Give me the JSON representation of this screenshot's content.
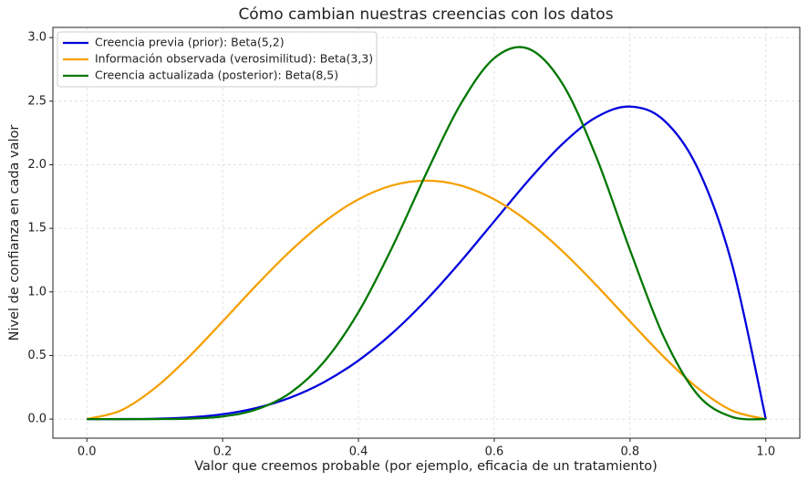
{
  "chart_data": {
    "type": "line",
    "title": "Cómo cambian nuestras creencias con los datos",
    "x_label": "Valor que creemos probable (por ejemplo, eficacia de un tratamiento)",
    "y_label": "Nivel de confianza en cada valor",
    "x": [
      0,
      0.05,
      0.1,
      0.15,
      0.2,
      0.25,
      0.3,
      0.35,
      0.4,
      0.45,
      0.5,
      0.55,
      0.6,
      0.65,
      0.7,
      0.75,
      0.8,
      0.85,
      0.9,
      0.95,
      1
    ],
    "series": [
      {
        "name": "Creencia previa (prior): Beta(5,2)",
        "color": "#0000dd",
        "values": [
          0,
          0.0002,
          0.0027,
          0.0129,
          0.0384,
          0.0879,
          0.1701,
          0.2926,
          0.4608,
          0.6766,
          0.9375,
          1.2353,
          1.5552,
          1.8743,
          2.1609,
          2.373,
          2.4576,
          2.349,
          1.9683,
          1.2218,
          0
        ]
      },
      {
        "name": "Información observada (verosimilitud): Beta(3,3)",
        "color": "#f5a000",
        "values": [
          0,
          0.0677,
          0.243,
          0.4877,
          0.768,
          1.0547,
          1.323,
          1.5527,
          1.728,
          1.8377,
          1.875,
          1.8377,
          1.728,
          1.5527,
          1.323,
          1.0547,
          0.768,
          0.4877,
          0.243,
          0.0677,
          0
        ]
      },
      {
        "name": "Creencia actualizada (posterior): Beta(8,5)",
        "color": "#007700",
        "values": [
          0,
          0,
          0.0003,
          0.0035,
          0.0208,
          0.0765,
          0.2079,
          0.4548,
          0.8409,
          1.354,
          1.9336,
          2.4722,
          2.8379,
          2.9131,
          2.6416,
          2.0648,
          1.3288,
          0.6427,
          0.1894,
          0.0173,
          0
        ]
      }
    ],
    "xlim": [
      -0.05,
      1.05
    ],
    "ylim": [
      -0.15,
      3.08
    ],
    "xticks": [
      {
        "value": 0,
        "label": "0.0"
      },
      {
        "value": 0.2,
        "label": "0.2"
      },
      {
        "value": 0.4,
        "label": "0.4"
      },
      {
        "value": 0.6,
        "label": "0.6"
      },
      {
        "value": 0.8,
        "label": "0.8"
      },
      {
        "value": 1,
        "label": "1.0"
      }
    ],
    "yticks": [
      {
        "value": 0,
        "label": "0.0"
      },
      {
        "value": 0.5,
        "label": "0.5"
      },
      {
        "value": 1,
        "label": "1.0"
      },
      {
        "value": 1.5,
        "label": "1.5"
      },
      {
        "value": 2,
        "label": "2.0"
      },
      {
        "value": 2.5,
        "label": "2.5"
      },
      {
        "value": 3,
        "label": "3.0"
      }
    ],
    "grid": true,
    "legend": "upper-left"
  }
}
